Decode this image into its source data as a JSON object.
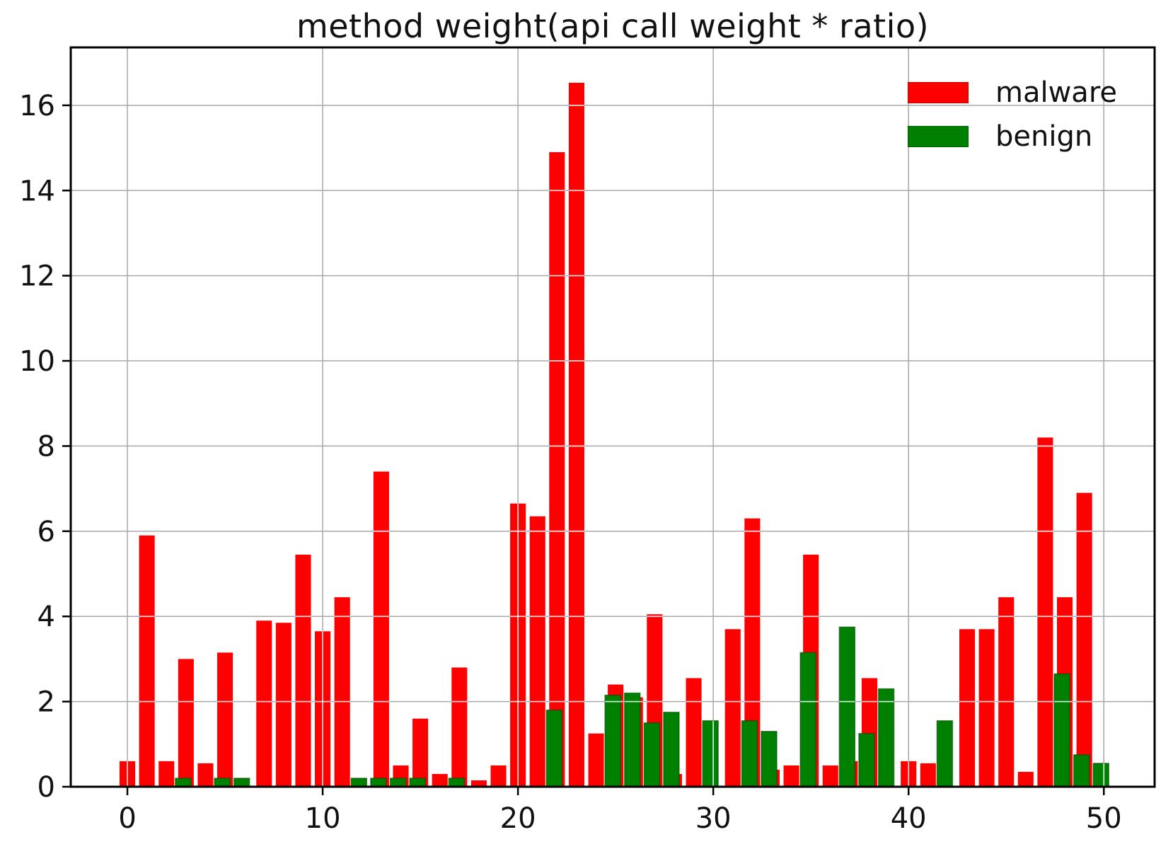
{
  "title": "method weight(api call weight * ratio)",
  "legend": {
    "items": [
      {
        "label": "malware",
        "color": "#ff0000"
      },
      {
        "label": "benign",
        "color": "#008000"
      }
    ]
  },
  "axes": {
    "x_ticks": [
      0,
      10,
      20,
      30,
      40,
      50
    ],
    "y_ticks": [
      0,
      2,
      4,
      6,
      8,
      10,
      12,
      14,
      16
    ],
    "xlim": [
      -2.9,
      52.6
    ],
    "ylim": [
      0,
      17.36
    ],
    "grid": true,
    "grid_color": "#a8a8a8"
  },
  "chart_data": {
    "type": "bar",
    "title": "method weight(api call weight * ratio)",
    "xlabel": "",
    "ylabel": "",
    "bar_width": 0.8,
    "legend_position": "upper right",
    "x": [
      0,
      1,
      2,
      3,
      4,
      5,
      6,
      7,
      8,
      9,
      10,
      11,
      12,
      13,
      14,
      15,
      16,
      17,
      18,
      19,
      20,
      21,
      22,
      23,
      24,
      25,
      26,
      27,
      28,
      29,
      30,
      31,
      32,
      33,
      34,
      35,
      36,
      37,
      38,
      39,
      40,
      41,
      42,
      43,
      44,
      45,
      46,
      47,
      48,
      49,
      50
    ],
    "series": [
      {
        "name": "malware",
        "color": "#ff0000",
        "values": [
          0.6,
          5.9,
          0.6,
          3.0,
          0.55,
          3.15,
          0,
          3.9,
          3.85,
          5.45,
          3.65,
          4.45,
          0,
          7.4,
          0.5,
          1.6,
          0.3,
          2.8,
          0.15,
          0.5,
          6.65,
          6.35,
          14.9,
          16.53,
          1.25,
          2.4,
          2.1,
          4.05,
          0.3,
          2.55,
          0,
          3.7,
          6.3,
          0.4,
          0.5,
          5.45,
          0.5,
          0.6,
          2.55,
          0,
          0.6,
          0.55,
          0,
          3.7,
          3.7,
          4.45,
          0.35,
          8.2,
          4.45,
          6.9,
          0
        ]
      },
      {
        "name": "benign",
        "color": "#008000",
        "values": [
          0,
          0,
          0,
          0.2,
          0,
          0.2,
          0.2,
          0,
          0,
          0,
          0,
          0,
          0.2,
          0.2,
          0.2,
          0.2,
          0,
          0.2,
          0,
          0,
          0,
          0,
          1.8,
          0,
          0,
          2.15,
          2.2,
          1.5,
          1.75,
          0,
          1.55,
          0,
          1.55,
          1.3,
          0,
          3.15,
          0,
          3.75,
          1.25,
          2.3,
          0,
          0,
          1.55,
          0,
          0,
          0,
          0,
          0,
          2.65,
          0.75,
          0.55
        ]
      }
    ]
  }
}
